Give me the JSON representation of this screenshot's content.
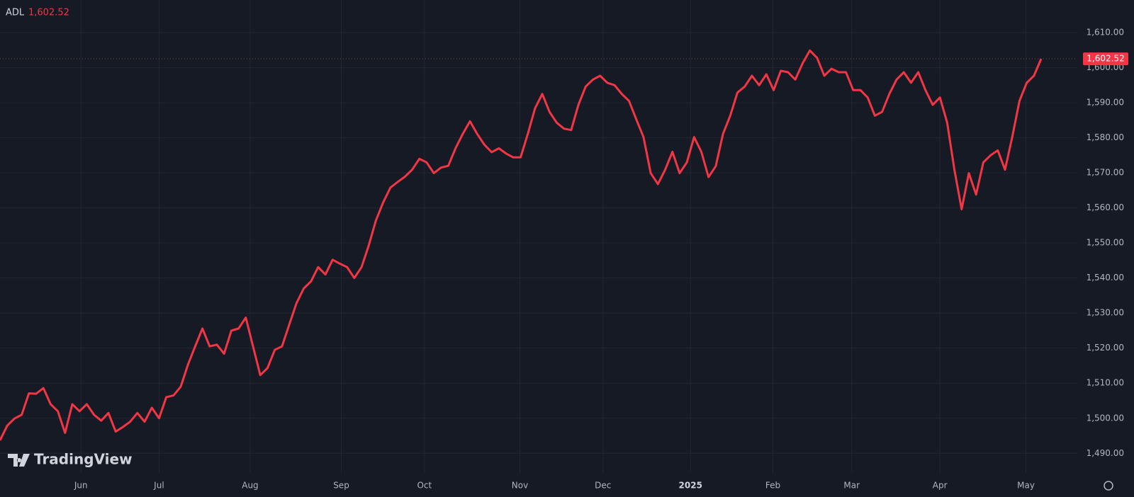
{
  "chart_data": {
    "type": "line",
    "series": [
      {
        "name": "ADL",
        "color": "#f23645",
        "values": [
          1493.7,
          1497.9,
          1499.9,
          1501,
          1507.1,
          1507,
          1508.6,
          1504,
          1502,
          1495.8,
          1504,
          1502,
          1504,
          1501,
          1499.3,
          1501.5,
          1496.2,
          1497.5,
          1499,
          1501.5,
          1499,
          1503,
          1500,
          1506,
          1506.5,
          1509,
          1515.3,
          1520.5,
          1525.6,
          1520.5,
          1521,
          1518.4,
          1525,
          1525.6,
          1528.7,
          1520.5,
          1512.3,
          1514.3,
          1519.5,
          1520.5,
          1526.7,
          1532.8,
          1537,
          1539,
          1543.1,
          1541,
          1545.2,
          1544.1,
          1543.1,
          1540,
          1543.1,
          1549.3,
          1556.5,
          1561.6,
          1565.8,
          1567.4,
          1568.9,
          1570.9,
          1574,
          1573,
          1569.9,
          1571.5,
          1572,
          1577,
          1581.1,
          1584.7,
          1581.1,
          1578,
          1575.9,
          1577,
          1575.5,
          1574.4,
          1574.4,
          1581.1,
          1588.4,
          1592.5,
          1587.4,
          1584.3,
          1582.6,
          1582.2,
          1589.4,
          1594.6,
          1596.6,
          1597.7,
          1595.7,
          1595,
          1592.5,
          1590.5,
          1585.3,
          1580.2,
          1569.9,
          1566.8,
          1570.9,
          1576,
          1569.9,
          1573,
          1580.2,
          1576,
          1568.8,
          1571.9,
          1581.1,
          1586.3,
          1592.9,
          1594.6,
          1597.7,
          1595,
          1598.1,
          1593.6,
          1599.1,
          1598.7,
          1596.6,
          1601.2,
          1604.9,
          1602.8,
          1597.7,
          1599.7,
          1598.7,
          1598.7,
          1593.6,
          1593.6,
          1591.5,
          1586.3,
          1587.4,
          1592.5,
          1596.6,
          1598.7,
          1595.7,
          1598.7,
          1593.6,
          1589.4,
          1591.5,
          1584.3,
          1570.9,
          1559.6,
          1569.9,
          1563.8,
          1573,
          1575,
          1576.4,
          1570.9,
          1580.2,
          1590.5,
          1595.7,
          1597.7,
          1602.52
        ]
      }
    ],
    "current_value": {
      "value": 1602.52,
      "label": "1,602.52"
    },
    "watermark": "TradingView",
    "xlim": [
      0,
      149
    ],
    "xticks": [
      {
        "value": 11.2,
        "label": "Jun"
      },
      {
        "value": 22,
        "label": "Jul"
      },
      {
        "value": 34.6,
        "label": "Aug"
      },
      {
        "value": 47.2,
        "label": "Sep"
      },
      {
        "value": 58.7,
        "label": "Oct"
      },
      {
        "value": 71.9,
        "label": "Nov"
      },
      {
        "value": 83.4,
        "label": "Dec"
      },
      {
        "value": 95.5,
        "label": "2025"
      },
      {
        "value": 106.9,
        "label": "Feb"
      },
      {
        "value": 117.8,
        "label": "Mar"
      },
      {
        "value": 130,
        "label": "Apr"
      },
      {
        "value": 141.9,
        "label": "May"
      }
    ],
    "ylim": [
      1484.4,
      1619.3
    ],
    "yticks": [
      {
        "value": 1490,
        "label": "1,490.00"
      },
      {
        "value": 1500,
        "label": "1,500.00"
      },
      {
        "value": 1510,
        "label": "1,510.00"
      },
      {
        "value": 1520,
        "label": "1,520.00"
      },
      {
        "value": 1530,
        "label": "1,530.00"
      },
      {
        "value": 1540,
        "label": "1,540.00"
      },
      {
        "value": 1550,
        "label": "1,550.00"
      },
      {
        "value": 1560,
        "label": "1,560.00"
      },
      {
        "value": 1570,
        "label": "1,570.00"
      },
      {
        "value": 1580,
        "label": "1,580.00"
      },
      {
        "value": 1590,
        "label": "1,590.00"
      },
      {
        "value": 1600,
        "label": "1,600.00"
      },
      {
        "value": 1610,
        "label": "1,610.00"
      }
    ],
    "grid": true
  }
}
